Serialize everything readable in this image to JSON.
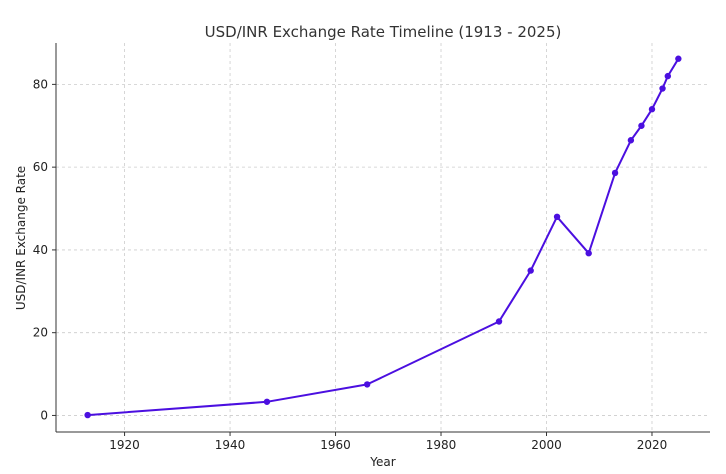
{
  "chart_data": {
    "type": "line",
    "title": "USD/INR Exchange Rate Timeline (1913 - 2025)",
    "xlabel": "Year",
    "ylabel": "USD/INR Exchange Rate",
    "xlim": [
      1907,
      2031
    ],
    "ylim": [
      -4,
      90
    ],
    "xticks": [
      1920,
      1940,
      1960,
      1980,
      2000,
      2020
    ],
    "yticks": [
      0,
      20,
      40,
      60,
      80
    ],
    "grid": true,
    "series": [
      {
        "color": "#4b0fe0",
        "x": [
          1913,
          1947,
          1966,
          1991,
          1997,
          2002,
          2008,
          2013,
          2016,
          2018,
          2020,
          2022,
          2023,
          2025
        ],
        "y": [
          0.09,
          3.3,
          7.5,
          22.7,
          35,
          48,
          39.2,
          58.6,
          66.5,
          70,
          74,
          79,
          82,
          86.2
        ]
      }
    ]
  }
}
